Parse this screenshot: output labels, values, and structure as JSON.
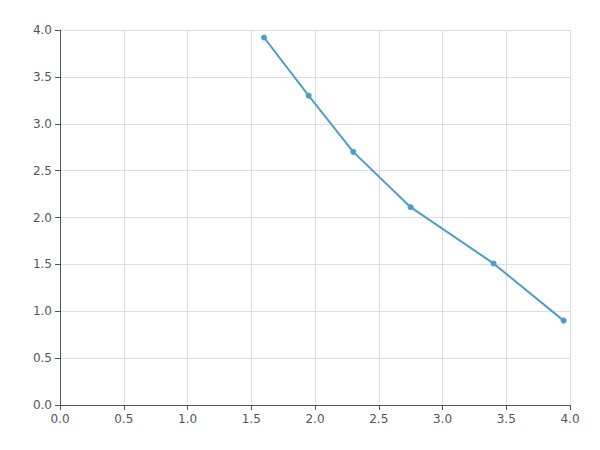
{
  "chart_data": {
    "type": "line",
    "x": [
      1.6,
      1.95,
      2.3,
      2.75,
      3.4,
      3.95
    ],
    "values": [
      3.92,
      3.3,
      2.7,
      2.11,
      1.51,
      0.9
    ],
    "color": "#4d9ec8",
    "marker": "circle",
    "xlim": [
      0,
      4
    ],
    "ylim": [
      0,
      4
    ],
    "xticks": [
      {
        "value": 0,
        "label": "0.0"
      },
      0.5,
      {
        "value": 1,
        "label": "1.0"
      },
      1.5,
      {
        "value": 2,
        "label": "2.0"
      },
      2.5,
      {
        "value": 3,
        "label": "3.0"
      },
      3.5,
      {
        "value": 4,
        "label": "4.0"
      }
    ],
    "yticks": [
      {
        "value": 0,
        "label": "0.0"
      },
      0.5,
      {
        "value": 1,
        "label": "1.0"
      },
      1.5,
      {
        "value": 2,
        "label": "2.0"
      },
      2.5,
      {
        "value": 3,
        "label": "3.0"
      },
      3.5,
      {
        "value": 4,
        "label": "4.0"
      }
    ],
    "grid": true
  }
}
